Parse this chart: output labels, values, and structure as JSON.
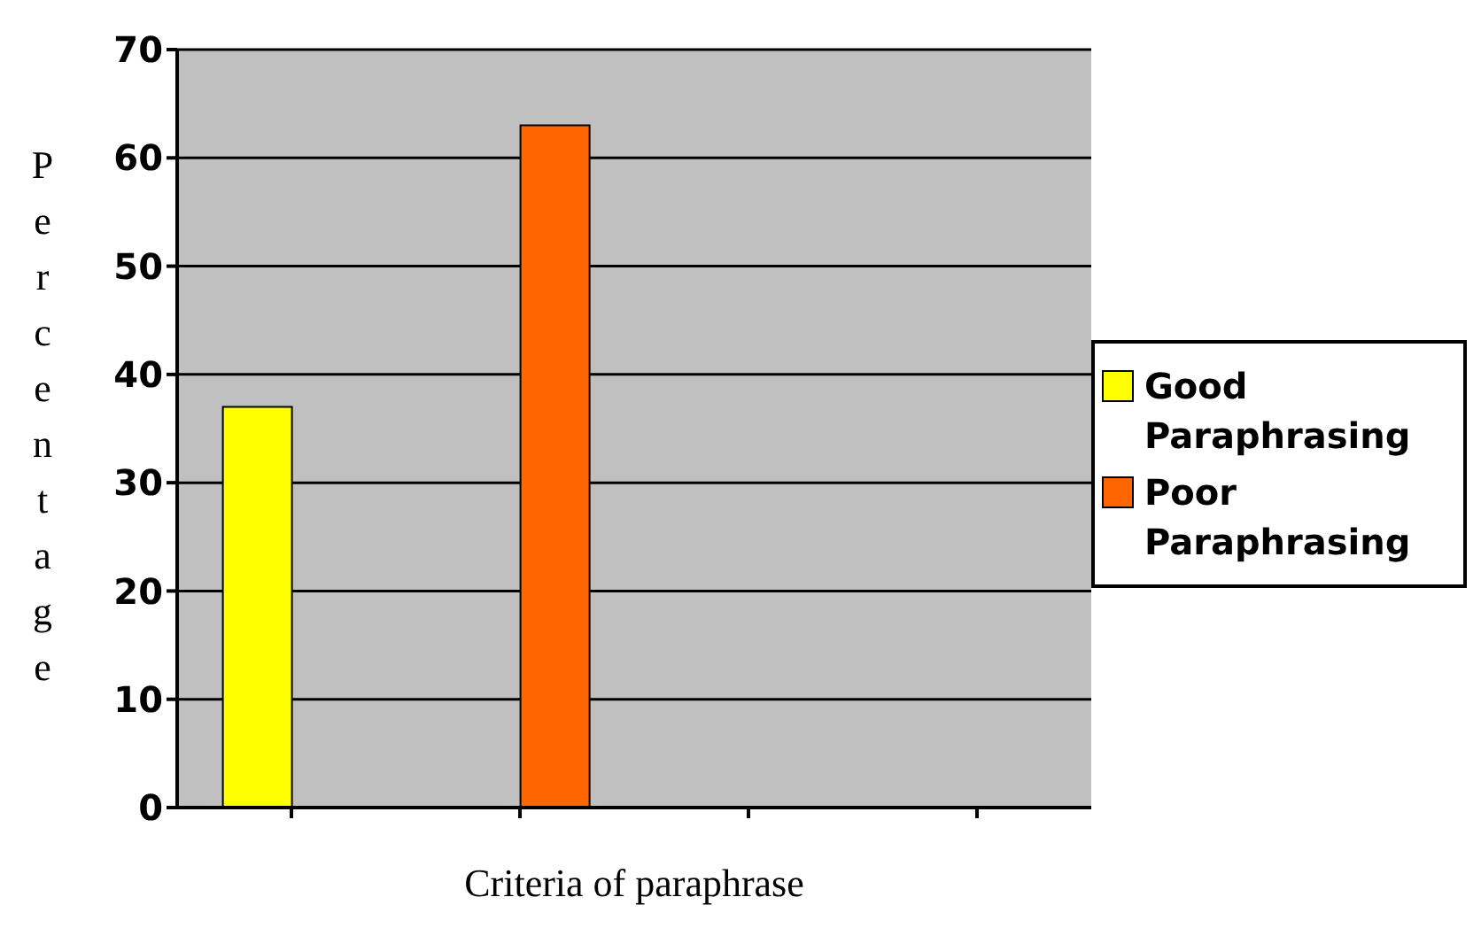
{
  "chart_data": {
    "type": "bar",
    "xlabel": "Criteria of paraphrase",
    "ylabel": "Percentage",
    "categories": [
      null,
      null,
      null,
      null
    ],
    "series": [
      {
        "name": "Good Paraphrasing",
        "color": "#ffff00",
        "values": [
          37,
          null,
          null,
          null
        ]
      },
      {
        "name": "Poor Paraphrasing",
        "color": "#ff6600",
        "values": [
          null,
          63,
          null,
          null
        ]
      }
    ],
    "ylim": [
      0,
      70
    ],
    "yticks": [
      0,
      10,
      20,
      30,
      40,
      50,
      60,
      70
    ],
    "grid": "y",
    "legend": "right",
    "tick_labels": "y"
  }
}
